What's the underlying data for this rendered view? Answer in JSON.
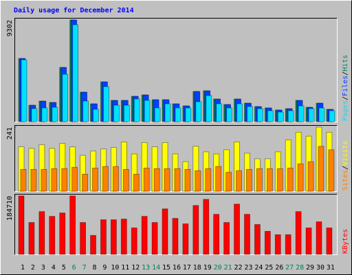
{
  "title": "Daily usage for December 2014",
  "categories": [
    "1",
    "2",
    "3",
    "4",
    "5",
    "6",
    "7",
    "8",
    "9",
    "10",
    "11",
    "12",
    "13",
    "14",
    "15",
    "16",
    "17",
    "18",
    "19",
    "20",
    "21",
    "22",
    "23",
    "24",
    "25",
    "26",
    "27",
    "28",
    "29",
    "30",
    "31"
  ],
  "category_colors": [
    "#000000",
    "#000000",
    "#000000",
    "#000000",
    "#000000",
    "#00805c",
    "#00805c",
    "#000000",
    "#000000",
    "#000000",
    "#000000",
    "#000000",
    "#00805c",
    "#00805c",
    "#000000",
    "#000000",
    "#000000",
    "#000000",
    "#000000",
    "#00805c",
    "#00805c",
    "#000000",
    "#000000",
    "#000000",
    "#000000",
    "#000000",
    "#00805c",
    "#00805c",
    "#000000",
    "#000000",
    "#000000"
  ],
  "legend_separator": "/",
  "chart_data": [
    {
      "type": "bar",
      "ylim": [
        0,
        9302
      ],
      "yticks": [
        9302
      ],
      "series": [
        {
          "name": "Hits",
          "color": "#00805c",
          "values": [
            5782,
            1508,
            1886,
            1760,
            4965,
            9302,
            2703,
            1634,
            3645,
            1948,
            1948,
            2325,
            2451,
            2011,
            2011,
            1634,
            1446,
            2765,
            2828,
            2074,
            1571,
            2074,
            1697,
            1383,
            1257,
            1069,
            1194,
            1948,
            1320,
            1697,
            1131
          ]
        },
        {
          "name": "Files",
          "color": "#0040ff",
          "values": [
            5782,
            1508,
            1886,
            1760,
            4965,
            9302,
            2703,
            1634,
            3645,
            1948,
            1948,
            2325,
            2451,
            2011,
            2011,
            1634,
            1446,
            2765,
            2828,
            2074,
            1571,
            2074,
            1697,
            1383,
            1257,
            1069,
            1194,
            1948,
            1320,
            1697,
            1131
          ]
        },
        {
          "name": "Pages",
          "color": "#00e0ff",
          "values": [
            5657,
            1194,
            1257,
            1320,
            4337,
            8862,
            1886,
            1131,
            3205,
            1508,
            1508,
            2074,
            1948,
            1257,
            1634,
            1257,
            1257,
            1823,
            2388,
            1634,
            1257,
            1634,
            1383,
            1194,
            1006,
            880,
            1006,
            1446,
            1194,
            1257,
            1006
          ]
        }
      ]
    },
    {
      "type": "bar",
      "ylim": [
        0,
        241
      ],
      "yticks": [
        241
      ],
      "series": [
        {
          "name": "Visits",
          "color": "#ffff00",
          "values": [
            167,
            161,
            175,
            161,
            180,
            167,
            135,
            151,
            159,
            164,
            185,
            140,
            183,
            167,
            183,
            140,
            111,
            169,
            148,
            140,
            156,
            185,
            143,
            122,
            122,
            148,
            193,
            222,
            207,
            241,
            222
          ]
        },
        {
          "name": "Sites",
          "color": "#ff8000",
          "values": [
            82,
            82,
            82,
            85,
            85,
            90,
            64,
            87,
            93,
            93,
            82,
            64,
            87,
            85,
            85,
            85,
            82,
            77,
            85,
            93,
            71,
            77,
            82,
            85,
            85,
            85,
            87,
            103,
            111,
            169,
            156
          ]
        }
      ]
    },
    {
      "type": "bar",
      "ylim": [
        0,
        184710
      ],
      "yticks": [
        184710
      ],
      "series": [
        {
          "name": "KBytes",
          "color": "#ff0000",
          "values": [
            184710,
            100950,
            135300,
            120280,
            131020,
            184710,
            100950,
            60140,
            109540,
            109540,
            111690,
            83770,
            120280,
            100950,
            143900,
            113840,
            96650,
            154650,
            173980,
            126720,
            100950,
            158950,
            126720,
            94510,
            73030,
            62290,
            62290,
            135300,
            83770,
            103100,
            83770
          ]
        }
      ]
    }
  ]
}
